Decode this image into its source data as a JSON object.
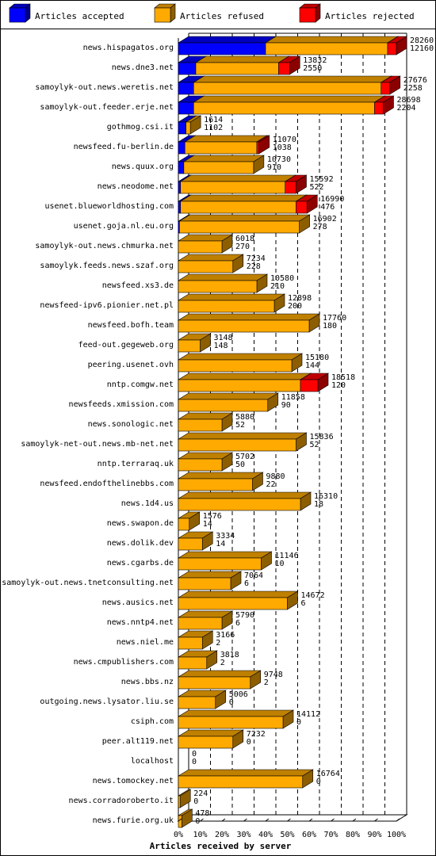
{
  "chart_data": {
    "type": "bar",
    "orientation": "horizontal",
    "stacked": true,
    "style": "3d",
    "xlabel": "Articles received by server",
    "ylabel": "",
    "xlim": [
      0,
      100
    ],
    "x_unit": "%",
    "x_ticks": [
      "0%",
      "10%",
      "20%",
      "30%",
      "40%",
      "50%",
      "60%",
      "70%",
      "80%",
      "90%",
      "100%"
    ],
    "grid": "vertical dashed",
    "legend_position": "top",
    "legend": [
      {
        "name": "Articles accepted",
        "color": "#0000ff"
      },
      {
        "name": "Articles refused",
        "color": "#ffaa00"
      },
      {
        "name": "Articles rejected",
        "color": "#ff0000"
      }
    ],
    "colors": {
      "accepted": "#0000ff",
      "refused": "#ffaa00",
      "rejected": "#ff0000",
      "frame": "#000000",
      "background": "#ffffff"
    },
    "servers": [
      {
        "name": "news.hispagatos.org",
        "total": "28260",
        "rejected": "12160",
        "accepted": 0.4,
        "refused": 0.56,
        "rej": 0.04
      },
      {
        "name": "news.dne3.net",
        "total": "13832",
        "rejected": "2550",
        "accepted": 0.08,
        "refused": 0.38,
        "rej": 0.05
      },
      {
        "name": "samoylyk-out.news.weretis.net",
        "total": "27676",
        "rejected": "2258",
        "accepted": 0.07,
        "refused": 0.86,
        "rej": 0.04
      },
      {
        "name": "samoylyk-out.feeder.erje.net",
        "total": "28698",
        "rejected": "2204",
        "accepted": 0.07,
        "refused": 0.83,
        "rej": 0.04
      },
      {
        "name": "gothmog.csi.it",
        "total": "1614",
        "rejected": "1102",
        "accepted": 0.035,
        "refused": 0.02,
        "rej": 0.0
      },
      {
        "name": "newsfeed.fu-berlin.de",
        "total": "11070",
        "rejected": "1038",
        "accepted": 0.03,
        "refused": 0.33,
        "rej": 0.01
      },
      {
        "name": "news.quux.org",
        "total": "10730",
        "rejected": "910",
        "accepted": 0.025,
        "refused": 0.32,
        "rej": 0.0
      },
      {
        "name": "news.neodome.net",
        "total": "15592",
        "rejected": "522",
        "accepted": 0.01,
        "refused": 0.48,
        "rej": 0.05
      },
      {
        "name": "usenet.blueworldhosting.com",
        "total": "16990",
        "rejected": "476",
        "accepted": 0.01,
        "refused": 0.53,
        "rej": 0.05
      },
      {
        "name": "usenet.goja.nl.eu.org",
        "total": "16902",
        "rejected": "278",
        "accepted": 0.005,
        "refused": 0.55,
        "rej": 0.0
      },
      {
        "name": "samoylyk-out.news.chmurka.net",
        "total": "6018",
        "rejected": "270",
        "accepted": 0.0,
        "refused": 0.2,
        "rej": 0.0
      },
      {
        "name": "samoylyk.feeds.news.szaf.org",
        "total": "7234",
        "rejected": "228",
        "accepted": 0.0,
        "refused": 0.25,
        "rej": 0.0
      },
      {
        "name": "newsfeed.xs3.de",
        "total": "10580",
        "rejected": "210",
        "accepted": 0.0,
        "refused": 0.36,
        "rej": 0.0
      },
      {
        "name": "newsfeed-ipv6.pionier.net.pl",
        "total": "12898",
        "rejected": "200",
        "accepted": 0.0,
        "refused": 0.44,
        "rej": 0.0
      },
      {
        "name": "newsfeed.bofh.team",
        "total": "17760",
        "rejected": "180",
        "accepted": 0.0,
        "refused": 0.6,
        "rej": 0.0
      },
      {
        "name": "feed-out.gegeweb.org",
        "total": "3148",
        "rejected": "148",
        "accepted": 0.0,
        "refused": 0.1,
        "rej": 0.0
      },
      {
        "name": "peering.usenet.ovh",
        "total": "15180",
        "rejected": "144",
        "accepted": 0.0,
        "refused": 0.52,
        "rej": 0.0
      },
      {
        "name": "nntp.comgw.net",
        "total": "18518",
        "rejected": "120",
        "accepted": 0.0,
        "refused": 0.56,
        "rej": 0.08
      },
      {
        "name": "newsfeeds.xmission.com",
        "total": "11858",
        "rejected": "90",
        "accepted": 0.0,
        "refused": 0.41,
        "rej": 0.0
      },
      {
        "name": "news.sonologic.net",
        "total": "5880",
        "rejected": "52",
        "accepted": 0.0,
        "refused": 0.2,
        "rej": 0.0
      },
      {
        "name": "samoylyk-net-out.news.mb-net.net",
        "total": "15836",
        "rejected": "52",
        "accepted": 0.0,
        "refused": 0.54,
        "rej": 0.0
      },
      {
        "name": "nntp.terraraq.uk",
        "total": "5702",
        "rejected": "50",
        "accepted": 0.0,
        "refused": 0.2,
        "rej": 0.0
      },
      {
        "name": "newsfeed.endofthelinebbs.com",
        "total": "9880",
        "rejected": "22",
        "accepted": 0.0,
        "refused": 0.34,
        "rej": 0.0
      },
      {
        "name": "news.1d4.us",
        "total": "16310",
        "rejected": "18",
        "accepted": 0.0,
        "refused": 0.56,
        "rej": 0.0
      },
      {
        "name": "news.swapon.de",
        "total": "1576",
        "rejected": "14",
        "accepted": 0.0,
        "refused": 0.05,
        "rej": 0.0
      },
      {
        "name": "news.dolik.dev",
        "total": "3334",
        "rejected": "14",
        "accepted": 0.0,
        "refused": 0.11,
        "rej": 0.0
      },
      {
        "name": "news.cgarbs.de",
        "total": "11146",
        "rejected": "10",
        "accepted": 0.0,
        "refused": 0.38,
        "rej": 0.0
      },
      {
        "name": "samoylyk-out.news.tnetconsulting.net",
        "total": "7064",
        "rejected": "6",
        "accepted": 0.0,
        "refused": 0.24,
        "rej": 0.0
      },
      {
        "name": "news.ausics.net",
        "total": "14672",
        "rejected": "6",
        "accepted": 0.0,
        "refused": 0.5,
        "rej": 0.0
      },
      {
        "name": "news.nntp4.net",
        "total": "5790",
        "rejected": "6",
        "accepted": 0.0,
        "refused": 0.2,
        "rej": 0.0
      },
      {
        "name": "news.niel.me",
        "total": "3166",
        "rejected": "2",
        "accepted": 0.0,
        "refused": 0.11,
        "rej": 0.0
      },
      {
        "name": "news.cmpublishers.com",
        "total": "3818",
        "rejected": "2",
        "accepted": 0.0,
        "refused": 0.13,
        "rej": 0.0
      },
      {
        "name": "news.bbs.nz",
        "total": "9748",
        "rejected": "2",
        "accepted": 0.0,
        "refused": 0.33,
        "rej": 0.0
      },
      {
        "name": "outgoing.news.lysator.liu.se",
        "total": "5006",
        "rejected": "0",
        "accepted": 0.0,
        "refused": 0.17,
        "rej": 0.0
      },
      {
        "name": "csiph.com",
        "total": "14112",
        "rejected": "0",
        "accepted": 0.0,
        "refused": 0.48,
        "rej": 0.0
      },
      {
        "name": "peer.alt119.net",
        "total": "7232",
        "rejected": "0",
        "accepted": 0.0,
        "refused": 0.25,
        "rej": 0.0
      },
      {
        "name": "localhost",
        "total": "0",
        "rejected": "0",
        "accepted": 0.0,
        "refused": 0.0,
        "rej": 0.0
      },
      {
        "name": "news.tomockey.net",
        "total": "16764",
        "rejected": "0",
        "accepted": 0.0,
        "refused": 0.57,
        "rej": 0.0
      },
      {
        "name": "news.corradoroberto.it",
        "total": "224",
        "rejected": "0",
        "accepted": 0.0,
        "refused": 0.008,
        "rej": 0.0
      },
      {
        "name": "news.furie.org.uk",
        "total": "478",
        "rejected": "0",
        "accepted": 0.0,
        "refused": 0.016,
        "rej": 0.0
      }
    ]
  }
}
